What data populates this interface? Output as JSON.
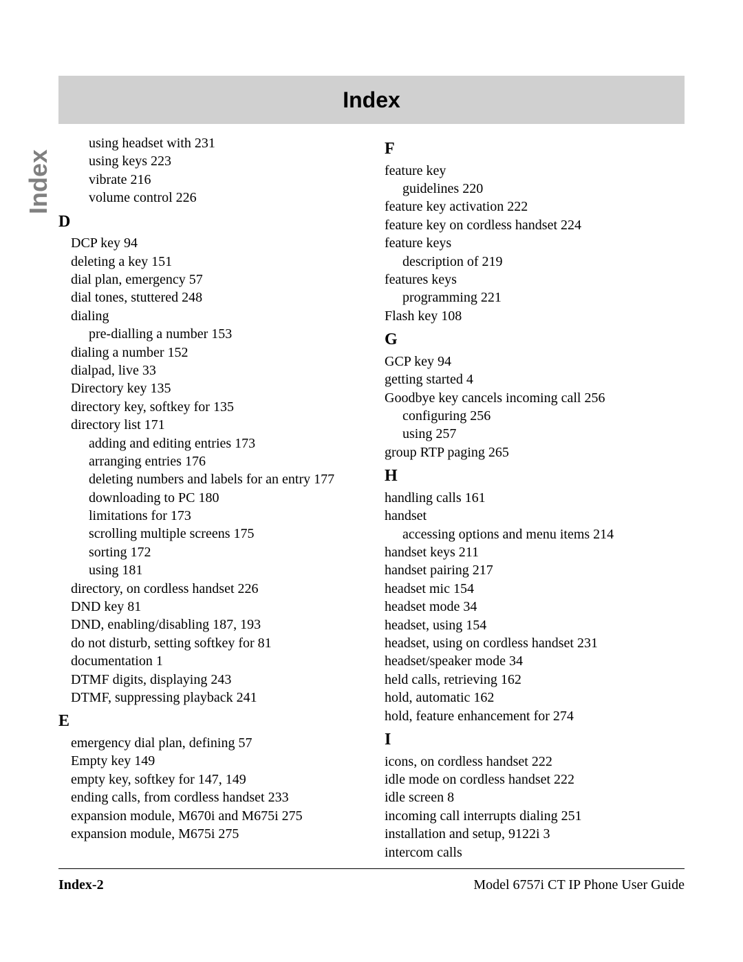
{
  "header": {
    "title": "Index"
  },
  "side_label": "Index",
  "left": {
    "cont": [
      "using headset with 231",
      "using keys 223",
      "vibrate 216",
      "volume control 226"
    ],
    "D": {
      "letter": "D",
      "lines": [
        {
          "t": "DCP key 94"
        },
        {
          "t": "deleting a key 151"
        },
        {
          "t": "dial plan, emergency 57"
        },
        {
          "t": "dial tones, stuttered 248"
        },
        {
          "t": "dialing"
        },
        {
          "t": "pre-dialling a number 153",
          "sub": true
        },
        {
          "t": "dialing a number 152"
        },
        {
          "t": "dialpad, live 33"
        },
        {
          "t": "Directory key 135"
        },
        {
          "t": "directory key, softkey for 135"
        },
        {
          "t": "directory list 171"
        },
        {
          "t": "adding and editing entries 173",
          "sub": true
        },
        {
          "t": "arranging entries 176",
          "sub": true
        },
        {
          "t": "deleting numbers and labels for an entry 177",
          "sub": true
        },
        {
          "t": "downloading to PC 180",
          "sub": true
        },
        {
          "t": "limitations for 173",
          "sub": true
        },
        {
          "t": "scrolling multiple screens 175",
          "sub": true
        },
        {
          "t": "sorting 172",
          "sub": true
        },
        {
          "t": "using 181",
          "sub": true
        },
        {
          "t": "directory, on cordless handset 226"
        },
        {
          "t": "DND key 81"
        },
        {
          "t": "DND, enabling/disabling 187, 193"
        },
        {
          "t": "do not disturb, setting softkey for 81"
        },
        {
          "t": "documentation 1"
        },
        {
          "t": "DTMF digits, displaying 243"
        },
        {
          "t": "DTMF, suppressing playback 241"
        }
      ]
    },
    "E": {
      "letter": "E",
      "lines": [
        {
          "t": "emergency dial plan, defining 57"
        },
        {
          "t": "Empty key 149"
        },
        {
          "t": "empty key, softkey for 147, 149"
        },
        {
          "t": "ending calls, from cordless handset 233"
        },
        {
          "t": "expansion module, M670i and M675i 275"
        },
        {
          "t": "expansion module, M675i 275"
        }
      ]
    }
  },
  "right": {
    "F": {
      "letter": "F",
      "lines": [
        {
          "t": "feature key"
        },
        {
          "t": "guidelines 220",
          "sub": true
        },
        {
          "t": "feature key activation 222"
        },
        {
          "t": "feature key on cordless handset 224"
        },
        {
          "t": "feature keys"
        },
        {
          "t": "description of 219",
          "sub": true
        },
        {
          "t": "features keys"
        },
        {
          "t": "programming 221",
          "sub": true
        },
        {
          "t": "Flash key 108"
        }
      ]
    },
    "G": {
      "letter": "G",
      "lines": [
        {
          "t": "GCP key 94"
        },
        {
          "t": "getting started 4"
        },
        {
          "t": "Goodbye key cancels incoming call 256"
        },
        {
          "t": "configuring 256",
          "sub": true
        },
        {
          "t": "using 257",
          "sub": true
        },
        {
          "t": "group RTP paging 265"
        }
      ]
    },
    "H": {
      "letter": "H",
      "lines": [
        {
          "t": "handling calls 161"
        },
        {
          "t": "handset"
        },
        {
          "t": "accessing options and menu items 214",
          "sub": true
        },
        {
          "t": "handset keys 211"
        },
        {
          "t": "handset pairing 217"
        },
        {
          "t": "headset mic 154"
        },
        {
          "t": "headset mode 34"
        },
        {
          "t": "headset, using 154"
        },
        {
          "t": "headset, using on cordless handset 231"
        },
        {
          "t": "headset/speaker mode 34"
        },
        {
          "t": "held calls, retrieving 162"
        },
        {
          "t": "hold, automatic 162"
        },
        {
          "t": "hold, feature enhancement for 274"
        }
      ]
    },
    "I": {
      "letter": "I",
      "lines": [
        {
          "t": "icons, on cordless handset 222"
        },
        {
          "t": "idle mode on cordless handset 222"
        },
        {
          "t": "idle screen 8"
        },
        {
          "t": "incoming call interrupts dialing 251"
        },
        {
          "t": "installation and setup, 9122i 3"
        },
        {
          "t": "intercom calls"
        }
      ]
    }
  },
  "footer": {
    "left": "Index-2",
    "right": "Model 6757i CT IP Phone User Guide"
  }
}
